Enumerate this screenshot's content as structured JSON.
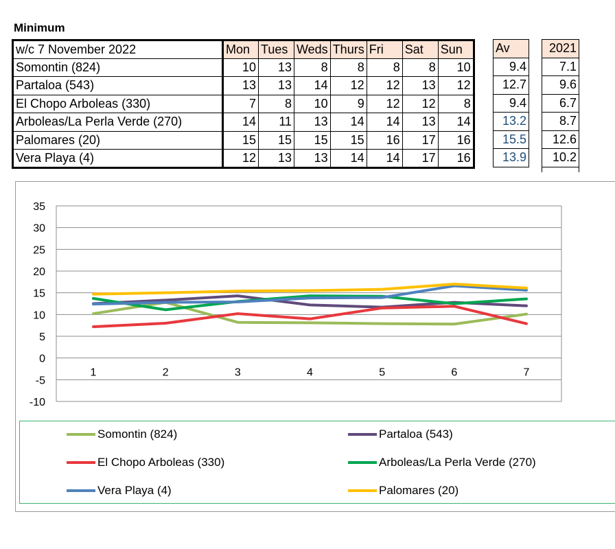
{
  "title": "Minimum",
  "table": {
    "week_label": "w/c  7 November 2022",
    "days": [
      "Mon",
      "Tues",
      "Weds",
      "Thurs",
      "Fri",
      "Sat",
      "Sun"
    ],
    "av_header": "Av",
    "year_header": "2021",
    "rows": [
      {
        "name": "Somontin (824)",
        "values": [
          "10",
          "13",
          "8",
          "8",
          "8",
          "8",
          "10"
        ],
        "av": "9.4",
        "prev": "7.1"
      },
      {
        "name": "Partaloa (543)",
        "values": [
          "13",
          "13",
          "14",
          "12",
          "12",
          "13",
          "12"
        ],
        "av": "12.7",
        "prev": "9.6"
      },
      {
        "name": "El Chopo Arboleas (330)",
        "values": [
          "7",
          "8",
          "10",
          "9",
          "12",
          "12",
          "8"
        ],
        "av": "9.4",
        "prev": "6.7"
      },
      {
        "name": "Arboleas/La Perla Verde (270)",
        "values": [
          "14",
          "11",
          "13",
          "14",
          "14",
          "13",
          "14"
        ],
        "av": "13.2",
        "prev": "8.7"
      },
      {
        "name": "Palomares (20)",
        "values": [
          "15",
          "15",
          "15",
          "15",
          "16",
          "17",
          "16"
        ],
        "av": "15.5",
        "prev": "12.6"
      },
      {
        "name": "Vera Playa (4)",
        "values": [
          "12",
          "13",
          "13",
          "14",
          "14",
          "17",
          "16"
        ],
        "av": "13.9",
        "prev": "10.2"
      }
    ]
  },
  "chart_data": {
    "type": "line",
    "x": [
      1,
      2,
      3,
      4,
      5,
      6,
      7
    ],
    "ylim": [
      -10,
      35
    ],
    "yticks": [
      35,
      30,
      25,
      20,
      15,
      10,
      5,
      0,
      -5,
      -10
    ],
    "grid": true,
    "legend_position": "bottom",
    "series": [
      {
        "name": "Somontin (824)",
        "color": "#9bbb59",
        "values": [
          10.2,
          12.8,
          8.2,
          8.1,
          7.9,
          7.8,
          10.1
        ]
      },
      {
        "name": "Partaloa (543)",
        "color": "#604a7b",
        "values": [
          12.5,
          13.3,
          14.3,
          12.2,
          11.7,
          12.8,
          12.0
        ]
      },
      {
        "name": "El Chopo Arboleas (330)",
        "color": "#e8383d",
        "values": [
          7.2,
          8.0,
          10.2,
          9.0,
          11.5,
          11.9,
          7.9
        ]
      },
      {
        "name": "Arboleas/La Perla Verde (270)",
        "color": "#00a550",
        "values": [
          13.7,
          11.1,
          13.0,
          14.3,
          14.2,
          12.5,
          13.6
        ]
      },
      {
        "name": "Vera Playa (4)",
        "color": "#4f81bd",
        "values": [
          12.4,
          12.8,
          12.9,
          13.8,
          13.9,
          16.6,
          15.6
        ]
      },
      {
        "name": "Palomares (20)",
        "color": "#ffc000",
        "values": [
          14.7,
          15.0,
          15.4,
          15.5,
          15.8,
          17.0,
          16.1
        ]
      }
    ]
  }
}
